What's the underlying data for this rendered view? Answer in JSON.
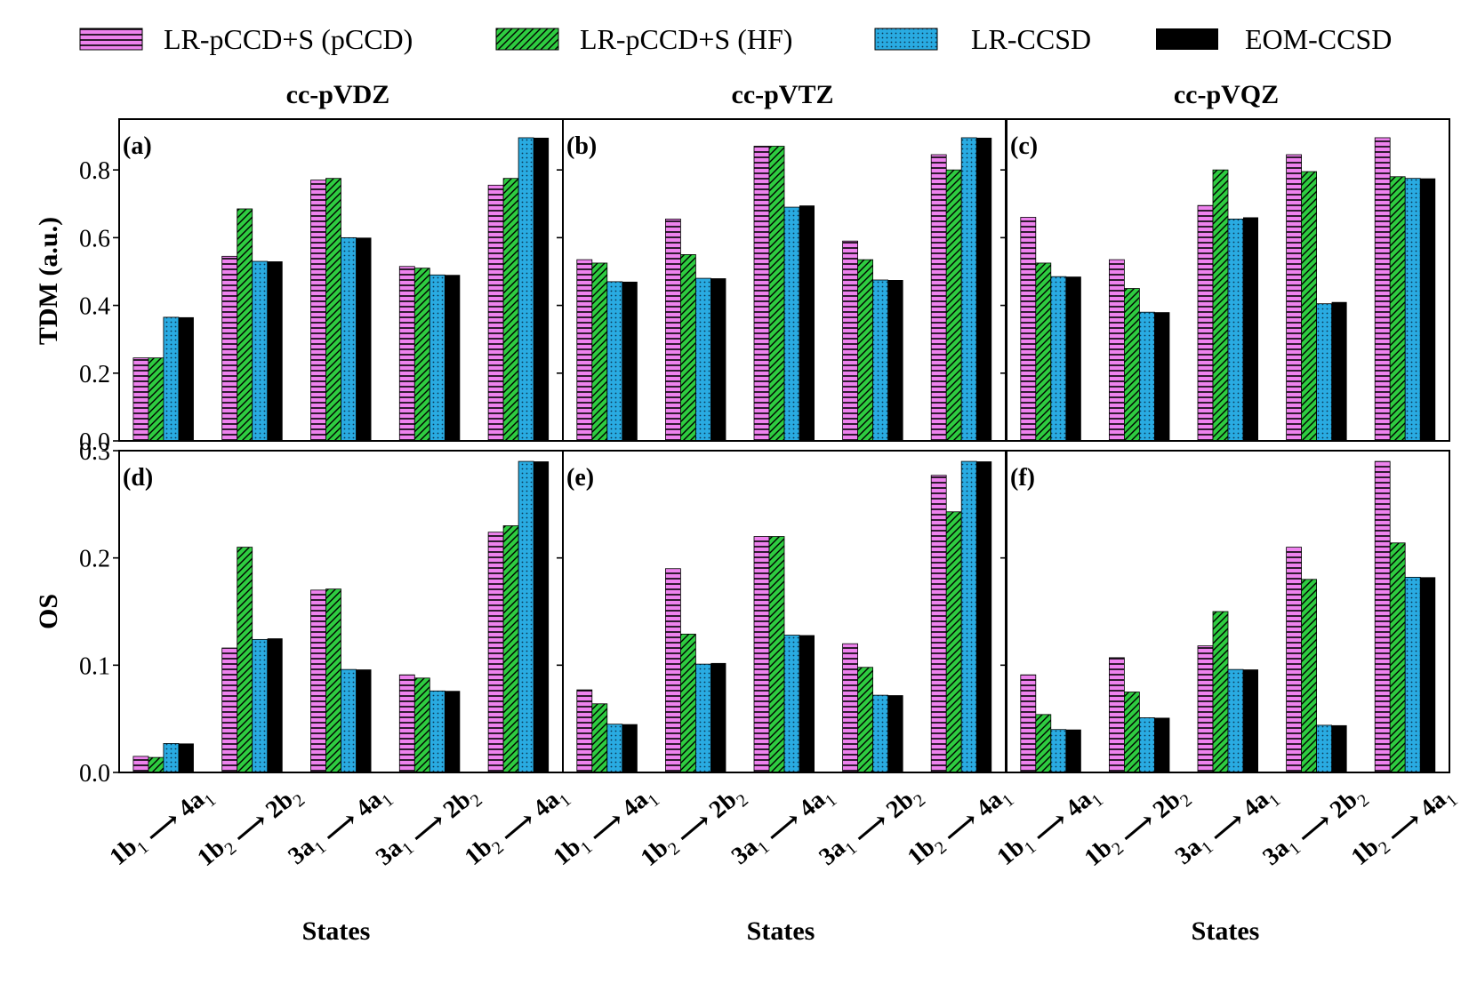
{
  "figure": {
    "legend": [
      {
        "label": "LR-pCCD+S (pCCD)",
        "color": "#ee82ee",
        "pattern": "hlines"
      },
      {
        "label": "LR-pCCD+S (HF)",
        "color": "#2ecc40",
        "pattern": "diag"
      },
      {
        "label": "LR-CCSD",
        "color": "#29abe2",
        "pattern": "dots"
      },
      {
        "label": "EOM-CCSD",
        "color": "#000000",
        "pattern": "solid"
      }
    ],
    "column_titles": [
      "cc-pVDZ",
      "cc-pVTZ",
      "cc-pVQZ"
    ],
    "row_ylabels": [
      "TDM (a.u.)",
      "OS"
    ],
    "xlabel": "States"
  },
  "chart_data": [
    {
      "type": "bar",
      "panel": "(a)",
      "title": "cc-pVDZ",
      "ylabel": "TDM (a.u.)",
      "xlabel": "",
      "ylim": [
        0,
        0.95
      ],
      "yticks": [
        "0.0",
        "0.2",
        "0.4",
        "0.6",
        "0.8"
      ],
      "ytick_values": [
        0,
        0.2,
        0.4,
        0.6,
        0.8
      ],
      "categories": [
        "1b1 → 4a1",
        "1b2 → 2b2",
        "3a1 → 4a1",
        "3a1 → 2b2",
        "1b2 → 4a1"
      ],
      "series": [
        {
          "name": "LR-pCCD+S (pCCD)",
          "values": [
            0.245,
            0.545,
            0.77,
            0.515,
            0.755
          ]
        },
        {
          "name": "LR-pCCD+S (HF)",
          "values": [
            0.245,
            0.685,
            0.775,
            0.51,
            0.775
          ]
        },
        {
          "name": "LR-CCSD",
          "values": [
            0.365,
            0.53,
            0.6,
            0.49,
            0.895
          ]
        },
        {
          "name": "EOM-CCSD",
          "values": [
            0.365,
            0.53,
            0.6,
            0.49,
            0.895
          ]
        }
      ]
    },
    {
      "type": "bar",
      "panel": "(b)",
      "title": "cc-pVTZ",
      "ylabel": "",
      "xlabel": "",
      "ylim": [
        0,
        0.95
      ],
      "yticks": [],
      "ytick_values": [
        0,
        0.2,
        0.4,
        0.6,
        0.8
      ],
      "categories": [
        "1b1 → 4a1",
        "1b2 → 2b2",
        "3a1 → 4a1",
        "3a1 → 2b2",
        "1b2 → 4a1"
      ],
      "series": [
        {
          "name": "LR-pCCD+S (pCCD)",
          "values": [
            0.535,
            0.655,
            0.87,
            0.59,
            0.845
          ]
        },
        {
          "name": "LR-pCCD+S (HF)",
          "values": [
            0.525,
            0.55,
            0.87,
            0.535,
            0.8
          ]
        },
        {
          "name": "LR-CCSD",
          "values": [
            0.47,
            0.48,
            0.69,
            0.475,
            0.895
          ]
        },
        {
          "name": "EOM-CCSD",
          "values": [
            0.47,
            0.48,
            0.695,
            0.475,
            0.895
          ]
        }
      ]
    },
    {
      "type": "bar",
      "panel": "(c)",
      "title": "cc-pVQZ",
      "ylabel": "",
      "xlabel": "",
      "ylim": [
        0,
        0.95
      ],
      "yticks": [],
      "ytick_values": [
        0,
        0.2,
        0.4,
        0.6,
        0.8
      ],
      "categories": [
        "1b1 → 4a1",
        "1b2 → 2b2",
        "3a1 → 4a1",
        "3a1 → 2b2",
        "1b2 → 4a1"
      ],
      "series": [
        {
          "name": "LR-pCCD+S (pCCD)",
          "values": [
            0.66,
            0.535,
            0.695,
            0.845,
            0.895
          ]
        },
        {
          "name": "LR-pCCD+S (HF)",
          "values": [
            0.525,
            0.45,
            0.8,
            0.795,
            0.78
          ]
        },
        {
          "name": "LR-CCSD",
          "values": [
            0.485,
            0.38,
            0.655,
            0.405,
            0.775
          ]
        },
        {
          "name": "EOM-CCSD",
          "values": [
            0.485,
            0.38,
            0.66,
            0.41,
            0.775
          ]
        }
      ]
    },
    {
      "type": "bar",
      "panel": "(d)",
      "title": "",
      "ylabel": "OS",
      "xlabel": "States",
      "ylim": [
        0,
        0.3
      ],
      "yticks": [
        "0.0",
        "0.1",
        "0.2",
        "0.3"
      ],
      "ytick_values": [
        0,
        0.1,
        0.2,
        0.3
      ],
      "categories": [
        "1b1 → 4a1",
        "1b2 → 2b2",
        "3a1 → 4a1",
        "3a1 → 2b2",
        "1b2 → 4a1"
      ],
      "series": [
        {
          "name": "LR-pCCD+S (pCCD)",
          "values": [
            0.015,
            0.116,
            0.17,
            0.091,
            0.224
          ]
        },
        {
          "name": "LR-pCCD+S (HF)",
          "values": [
            0.014,
            0.21,
            0.171,
            0.088,
            0.23
          ]
        },
        {
          "name": "LR-CCSD",
          "values": [
            0.027,
            0.124,
            0.096,
            0.076,
            0.29
          ]
        },
        {
          "name": "EOM-CCSD",
          "values": [
            0.027,
            0.125,
            0.096,
            0.076,
            0.29
          ]
        }
      ]
    },
    {
      "type": "bar",
      "panel": "(e)",
      "title": "",
      "ylabel": "",
      "xlabel": "States",
      "ylim": [
        0,
        0.3
      ],
      "yticks": [],
      "ytick_values": [
        0,
        0.1,
        0.2,
        0.3
      ],
      "categories": [
        "1b1 → 4a1",
        "1b2 → 2b2",
        "3a1 → 4a1",
        "3a1 → 2b2",
        "1b2 → 4a1"
      ],
      "series": [
        {
          "name": "LR-pCCD+S (pCCD)",
          "values": [
            0.077,
            0.19,
            0.22,
            0.12,
            0.277
          ]
        },
        {
          "name": "LR-pCCD+S (HF)",
          "values": [
            0.064,
            0.129,
            0.22,
            0.098,
            0.243
          ]
        },
        {
          "name": "LR-CCSD",
          "values": [
            0.045,
            0.101,
            0.128,
            0.072,
            0.29
          ]
        },
        {
          "name": "EOM-CCSD",
          "values": [
            0.045,
            0.102,
            0.128,
            0.072,
            0.29
          ]
        }
      ]
    },
    {
      "type": "bar",
      "panel": "(f)",
      "title": "",
      "ylabel": "",
      "xlabel": "States",
      "ylim": [
        0,
        0.3
      ],
      "yticks": [],
      "ytick_values": [
        0,
        0.1,
        0.2,
        0.3
      ],
      "categories": [
        "1b1 → 4a1",
        "1b2 → 2b2",
        "3a1 → 4a1",
        "3a1 → 2b2",
        "1b2 → 4a1"
      ],
      "series": [
        {
          "name": "LR-pCCD+S (pCCD)",
          "values": [
            0.091,
            0.107,
            0.118,
            0.21,
            0.29
          ]
        },
        {
          "name": "LR-pCCD+S (HF)",
          "values": [
            0.054,
            0.075,
            0.15,
            0.18,
            0.214
          ]
        },
        {
          "name": "LR-CCSD",
          "values": [
            0.04,
            0.051,
            0.096,
            0.044,
            0.182
          ]
        },
        {
          "name": "EOM-CCSD",
          "values": [
            0.04,
            0.051,
            0.096,
            0.044,
            0.182
          ]
        }
      ]
    }
  ]
}
